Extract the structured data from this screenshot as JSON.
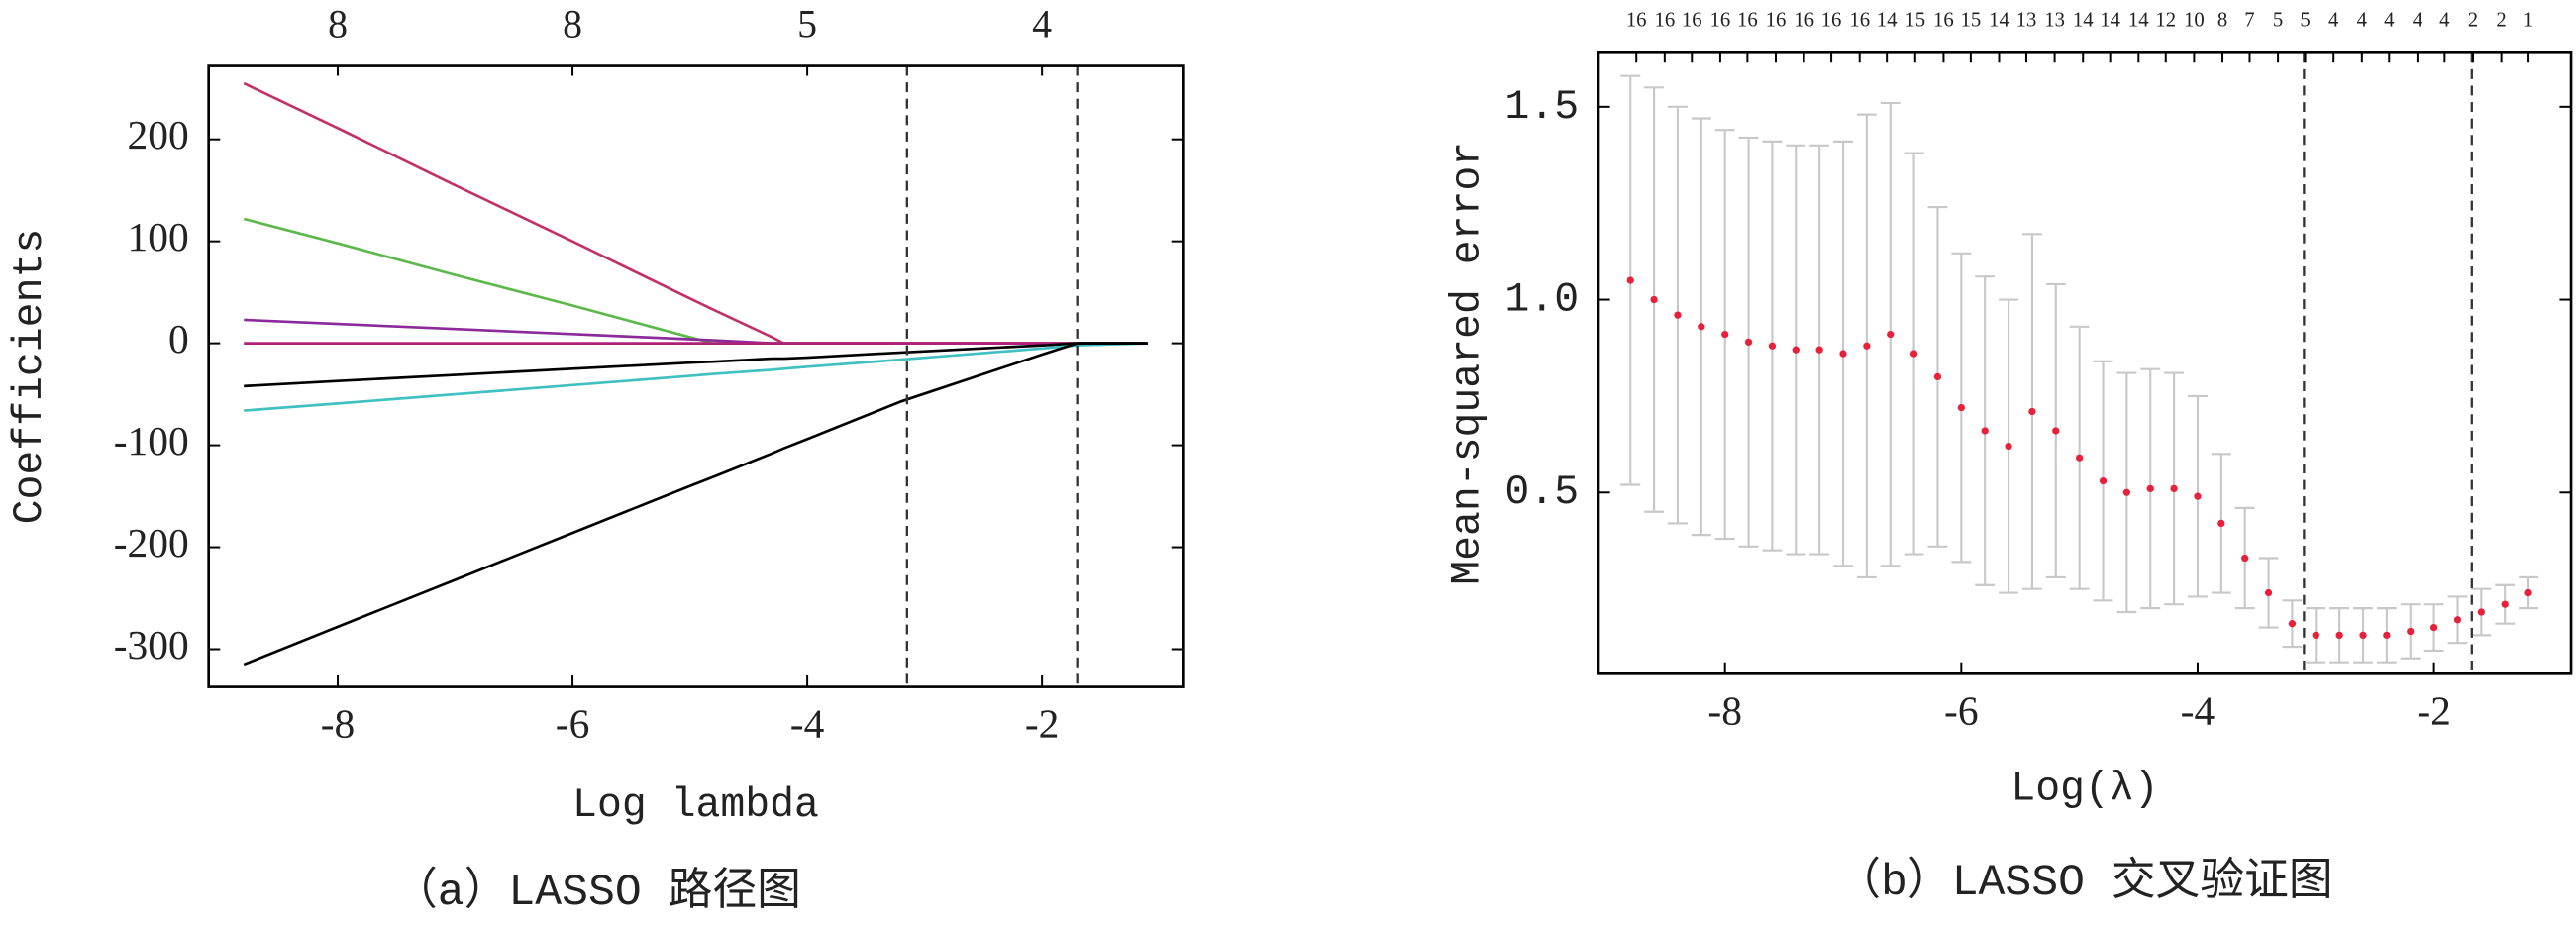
{
  "chart_data": [
    {
      "type": "line",
      "caption": "（a）LASSO 路径图",
      "xlabel": "Log lambda",
      "ylabel": "Coefficients",
      "x": [
        -8.8,
        -8,
        -7,
        -6,
        -5,
        -4.8,
        -4.3,
        -4.2,
        -4,
        -3.2,
        -2,
        -1.7,
        -1.1
      ],
      "series": [
        {
          "color": "#c23068",
          "values": [
            255,
            211,
            155,
            100,
            44,
            33,
            6,
            0,
            0,
            0,
            0,
            0,
            0
          ]
        },
        {
          "color": "#5cb84a",
          "values": [
            122,
            98,
            67,
            37,
            6,
            0,
            0,
            0,
            0,
            0,
            0,
            0,
            0
          ]
        },
        {
          "color": "#8b2a9a",
          "values": [
            23,
            19,
            14,
            9,
            4,
            3,
            0,
            0,
            0,
            0,
            0,
            0,
            0
          ]
        },
        {
          "color": "#b0207a",
          "values": [
            0,
            0,
            0,
            0,
            0,
            0,
            0,
            0,
            0,
            0,
            0,
            0,
            0
          ]
        },
        {
          "color": "#000000",
          "values": [
            -42,
            -37,
            -31,
            -25,
            -19,
            -18,
            -15,
            -15,
            -14,
            -9,
            -2,
            0,
            0
          ]
        },
        {
          "color": "#40c0c0",
          "values": [
            -66,
            -59,
            -50,
            -41,
            -32,
            -30,
            -26,
            -25,
            -23,
            -16,
            -5,
            -2,
            0
          ]
        },
        {
          "color": "#000000",
          "values": [
            -315,
            -278,
            -232,
            -186,
            -140,
            -131,
            -108,
            -103,
            -94,
            -57,
            -11,
            0,
            0
          ]
        }
      ],
      "vlines": [
        -3.15,
        -1.7
      ],
      "xlim": [
        -9.1,
        -0.8
      ],
      "ylim": [
        -337,
        272
      ],
      "xticks": [
        -8,
        -6,
        -4,
        -2
      ],
      "yticks": [
        -300,
        -200,
        -100,
        0,
        100,
        200
      ],
      "top_ticks": [
        {
          "value": -8,
          "label": "8"
        },
        {
          "value": -6,
          "label": "8"
        },
        {
          "value": -4,
          "label": "5"
        },
        {
          "value": -2,
          "label": "4"
        }
      ]
    },
    {
      "type": "errorbar",
      "caption": "（b）LASSO 交叉验证图",
      "xlabel": "Log(λ)",
      "ylabel": "Mean-squared error",
      "color": "#e8213a",
      "bar_color": "#c8c8c8",
      "x": [
        -8.8,
        -8.6,
        -8.4,
        -8.2,
        -8.0,
        -7.8,
        -7.6,
        -7.4,
        -7.2,
        -7.0,
        -6.8,
        -6.6,
        -6.4,
        -6.2,
        -6.0,
        -5.8,
        -5.6,
        -5.4,
        -5.2,
        -5.0,
        -4.8,
        -4.6,
        -4.4,
        -4.2,
        -4.0,
        -3.8,
        -3.6,
        -3.4,
        -3.2,
        -3.0,
        -2.8,
        -2.6,
        -2.4,
        -2.2,
        -2.0,
        -1.8,
        -1.6,
        -1.4,
        -1.2
      ],
      "values": [
        1.05,
        1.0,
        0.96,
        0.93,
        0.91,
        0.89,
        0.88,
        0.87,
        0.87,
        0.86,
        0.88,
        0.91,
        0.86,
        0.8,
        0.72,
        0.66,
        0.62,
        0.71,
        0.66,
        0.59,
        0.53,
        0.5,
        0.51,
        0.51,
        0.49,
        0.42,
        0.33,
        0.24,
        0.16,
        0.13,
        0.13,
        0.13,
        0.13,
        0.14,
        0.15,
        0.17,
        0.19,
        0.21,
        0.24
      ],
      "errors": [
        0.53,
        0.55,
        0.54,
        0.54,
        0.53,
        0.53,
        0.53,
        0.53,
        0.53,
        0.55,
        0.6,
        0.6,
        0.52,
        0.44,
        0.4,
        0.4,
        0.38,
        0.46,
        0.38,
        0.34,
        0.31,
        0.31,
        0.31,
        0.3,
        0.26,
        0.18,
        0.13,
        0.09,
        0.06,
        0.07,
        0.07,
        0.07,
        0.07,
        0.07,
        0.06,
        0.06,
        0.06,
        0.05,
        0.04
      ],
      "vlines": [
        -3.1,
        -1.68
      ],
      "xlim": [
        -9.07,
        -0.84
      ],
      "ylim": [
        0.03,
        1.64
      ],
      "xticks": [
        -8,
        -6,
        -4,
        -2
      ],
      "yticks": [
        0.5,
        {
          "value": 1,
          "label": "1.0"
        },
        1.5
      ],
      "top_ticks": [
        {
          "value": -8.75,
          "label": "16"
        },
        {
          "value": -8.51,
          "label": "16"
        },
        {
          "value": -8.28,
          "label": "16"
        },
        {
          "value": -8.04,
          "label": "16"
        },
        {
          "value": -7.81,
          "label": "16"
        },
        {
          "value": -7.57,
          "label": "16"
        },
        {
          "value": -7.33,
          "label": "16"
        },
        {
          "value": -7.1,
          "label": "16"
        },
        {
          "value": -6.86,
          "label": "16"
        },
        {
          "value": -6.63,
          "label": "14"
        },
        {
          "value": -6.39,
          "label": "15"
        },
        {
          "value": -6.15,
          "label": "16"
        },
        {
          "value": -5.92,
          "label": "15"
        },
        {
          "value": -5.68,
          "label": "14"
        },
        {
          "value": -5.45,
          "label": "13"
        },
        {
          "value": -5.21,
          "label": "13"
        },
        {
          "value": -4.97,
          "label": "14"
        },
        {
          "value": -4.74,
          "label": "14"
        },
        {
          "value": -4.5,
          "label": "14"
        },
        {
          "value": -4.27,
          "label": "12"
        },
        {
          "value": -4.03,
          "label": "10"
        },
        {
          "value": -3.79,
          "label": "8"
        },
        {
          "value": -3.56,
          "label": "7"
        },
        {
          "value": -3.32,
          "label": "5"
        },
        {
          "value": -3.09,
          "label": "5"
        },
        {
          "value": -2.85,
          "label": "4"
        },
        {
          "value": -2.61,
          "label": "4"
        },
        {
          "value": -2.38,
          "label": "4"
        },
        {
          "value": -2.14,
          "label": "4"
        },
        {
          "value": -1.91,
          "label": "4"
        },
        {
          "value": -1.67,
          "label": "2"
        },
        {
          "value": -1.43,
          "label": "2"
        },
        {
          "value": -1.2,
          "label": "1"
        }
      ]
    }
  ]
}
